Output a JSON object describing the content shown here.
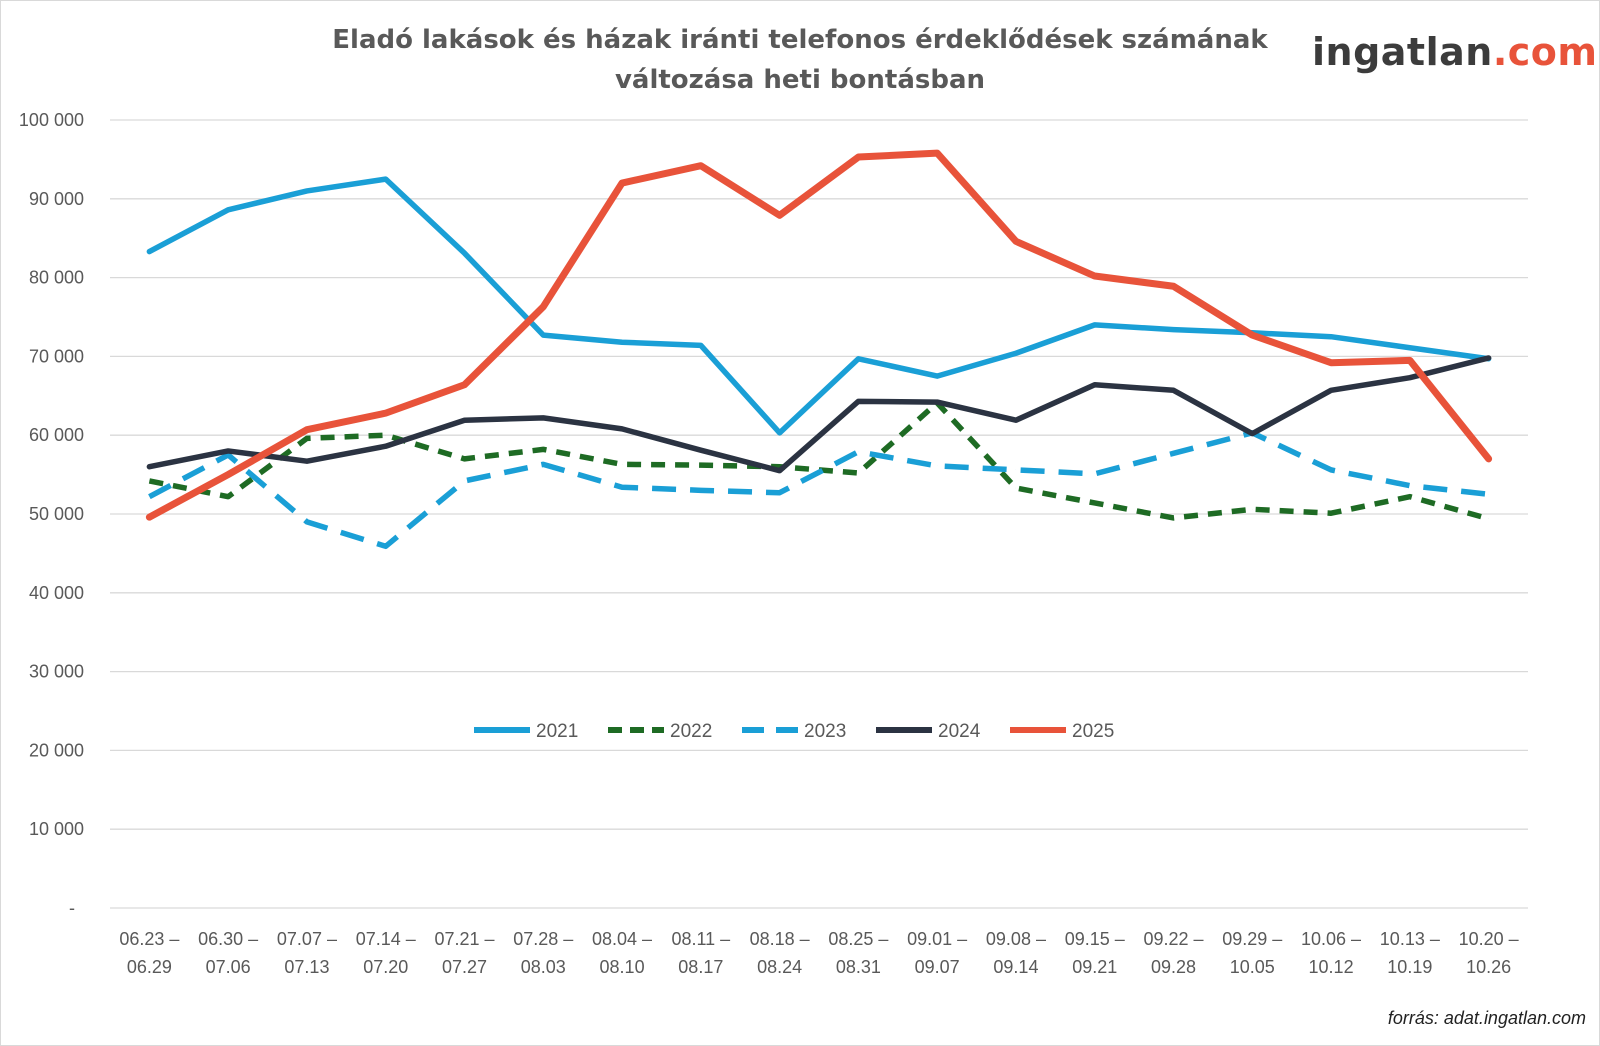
{
  "chart_data": {
    "type": "line",
    "title": "Eladó lakások és házak iránti telefonos érdeklődések számának változása heti bontásban",
    "xlabel": "",
    "ylabel": "",
    "ylim": [
      0,
      100000
    ],
    "yticks": [
      0,
      10000,
      20000,
      30000,
      40000,
      50000,
      60000,
      70000,
      80000,
      90000,
      100000
    ],
    "ytick_labels": [
      "-",
      "10 000",
      "20 000",
      "30 000",
      "40 000",
      "50 000",
      "60 000",
      "70 000",
      "80 000",
      "90 000",
      "100 000"
    ],
    "grid": "horizontal",
    "legend_position": "center",
    "categories": [
      [
        "06.23 –",
        "06.29"
      ],
      [
        "06.30 –",
        "07.06"
      ],
      [
        "07.07 –",
        "07.13"
      ],
      [
        "07.14 –",
        "07.20"
      ],
      [
        "07.21 –",
        "07.27"
      ],
      [
        "07.28 –",
        "08.03"
      ],
      [
        "08.04 –",
        "08.10"
      ],
      [
        "08.11 –",
        "08.17"
      ],
      [
        "08.18 –",
        "08.24"
      ],
      [
        "08.25 –",
        "08.31"
      ],
      [
        "09.01 –",
        "09.07"
      ],
      [
        "09.08 –",
        "09.14"
      ],
      [
        "09.15 –",
        "09.21"
      ],
      [
        "09.22 –",
        "09.28"
      ],
      [
        "09.29 –",
        "10.05"
      ],
      [
        "10.06 –",
        "10.12"
      ],
      [
        "10.13 –",
        "10.19"
      ],
      [
        "10.20 –",
        "10.26"
      ]
    ],
    "series": [
      {
        "name": "2021",
        "color": "#1a9fd6",
        "style": "solid",
        "values": [
          83300,
          88600,
          91000,
          92500,
          83100,
          72700,
          71800,
          71400,
          60300,
          69700,
          67500,
          70400,
          74000,
          73400,
          73000,
          72500,
          71100,
          69700
        ]
      },
      {
        "name": "2022",
        "color": "#1e6b24",
        "style": "dashed",
        "values": [
          54200,
          52200,
          59600,
          60000,
          57000,
          58200,
          56300,
          56200,
          56000,
          55200,
          64100,
          53300,
          51400,
          49500,
          50600,
          50100,
          52200,
          49400
        ]
      },
      {
        "name": "2023",
        "color": "#1a9fd6",
        "style": "long-dash",
        "values": [
          52200,
          57500,
          49000,
          45900,
          54200,
          56300,
          53400,
          53000,
          52700,
          57900,
          56100,
          55600,
          55100,
          57700,
          60300,
          55600,
          53600,
          52500
        ]
      },
      {
        "name": "2024",
        "color": "#2b3342",
        "style": "solid",
        "values": [
          56000,
          58000,
          56700,
          58600,
          61900,
          62200,
          60800,
          58100,
          55500,
          64300,
          64200,
          61900,
          66400,
          65700,
          60200,
          65700,
          67300,
          69800
        ]
      },
      {
        "name": "2025",
        "color": "#e8533a",
        "style": "solid",
        "values": [
          49600,
          55000,
          60700,
          62800,
          66400,
          76300,
          92000,
          94200,
          87900,
          95300,
          95800,
          84600,
          80200,
          78900,
          72700,
          69200,
          69500,
          57000
        ]
      }
    ]
  },
  "logo": {
    "main": "ingatlan",
    "suffix": ".com"
  },
  "source": "forrás: adat.ingatlan.com"
}
